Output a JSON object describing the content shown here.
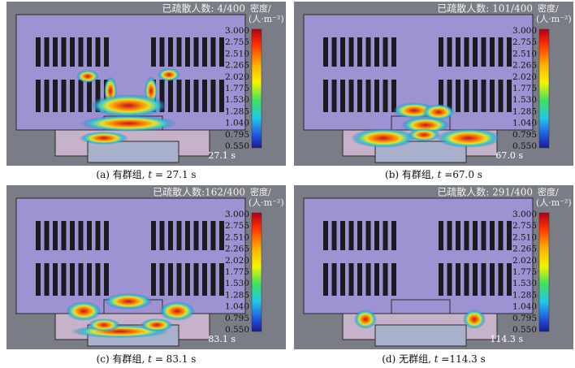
{
  "colorbar": {
    "title": "密度/",
    "unit": "(人·m⁻²)",
    "ticks": [
      "3.000",
      "2.755",
      "2.510",
      "2.265",
      "2.020",
      "1.775",
      "1.530",
      "1.285",
      "1.040",
      "0.795",
      "0.550"
    ]
  },
  "panels": [
    {
      "evacuated": "已疏散人数: 4/400",
      "time": "27.1 s",
      "caption": "(a) 有群组,",
      "var": "t",
      "rest": " = 27.1 s"
    },
    {
      "evacuated": "已疏散人数: 101/400",
      "time": "67.0 s",
      "caption": "(b) 有群组,",
      "var": "t",
      "rest": " =67.0 s"
    },
    {
      "evacuated": "已疏散人数:162/400",
      "time": "83.1 s",
      "caption": "(c) 有群组,",
      "var": "t",
      "rest": " = 83.1 s"
    },
    {
      "evacuated": "已疏散人数: 291/400",
      "time": "114.3 s",
      "caption": "(d) 无群组,",
      "var": "t",
      "rest": " =114.3 s"
    }
  ]
}
